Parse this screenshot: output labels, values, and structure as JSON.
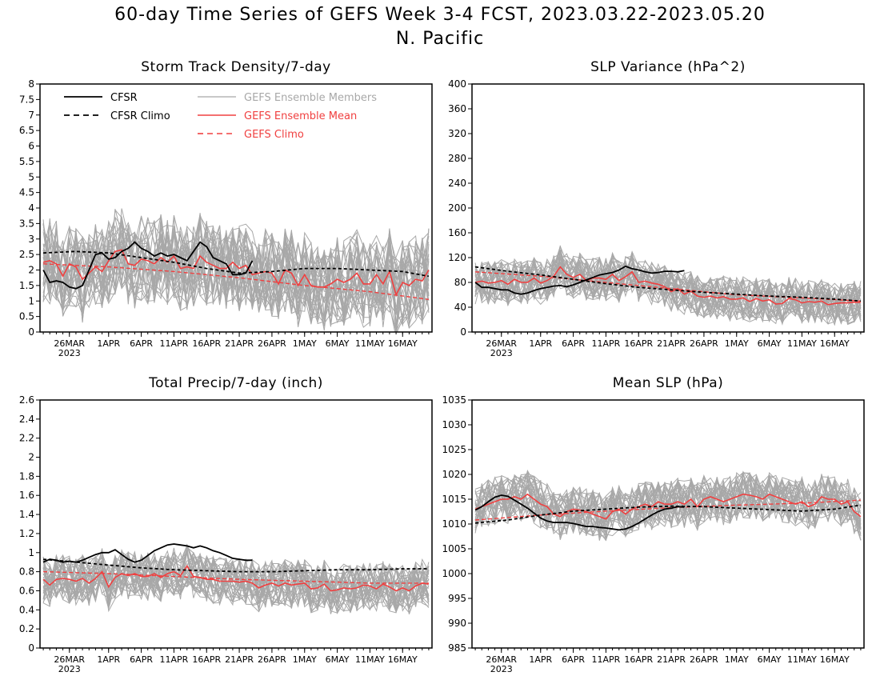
{
  "page": {
    "title_line1": "60-day Time Series of GEFS Week 3-4 FCST, 2023.03.22-2023.05.20",
    "title_line2": "N. Pacific"
  },
  "colors": {
    "cfsr": "#000000",
    "members": "#a8a8a8",
    "gefs": "#f04040"
  },
  "legend": {
    "cfsr": "CFSR",
    "cfsr_climo": "CFSR Climo",
    "members": "GEFS Ensemble Members",
    "gefs_mean": "GEFS Ensemble Mean",
    "gefs_climo": "GEFS Climo"
  },
  "x_ticks": [
    "26MAR",
    "1APR",
    "6APR",
    "11APR",
    "16APR",
    "21APR",
    "26APR",
    "1MAY",
    "6MAY",
    "11MAY",
    "16MAY"
  ],
  "x_year_label": "2023",
  "chart_data": [
    {
      "type": "line",
      "title": "Storm Track Density/7-day",
      "ylim": [
        0,
        8
      ],
      "yticks": [
        "0",
        "0.5",
        "1",
        "1.5",
        "2",
        "2.5",
        "3",
        "3.5",
        "4",
        "4.5",
        "5",
        "5.5",
        "6",
        "6.5",
        "7",
        "7.5",
        "8"
      ],
      "members": {
        "n": 31,
        "spread": 1.0
      },
      "series": [
        {
          "name": "CFSR",
          "x": [
            0,
            1,
            2,
            3,
            4,
            5,
            6,
            7,
            8,
            9,
            10,
            11,
            12,
            13,
            14,
            15,
            16,
            17,
            18,
            19,
            20,
            21,
            22,
            23,
            24,
            25,
            26,
            27,
            28,
            29,
            30,
            31,
            32
          ],
          "values": [
            2.0,
            1.6,
            1.65,
            1.6,
            1.45,
            1.4,
            1.5,
            2.0,
            2.5,
            2.55,
            2.35,
            2.4,
            2.6,
            2.7,
            2.9,
            2.7,
            2.6,
            2.45,
            2.55,
            2.45,
            2.5,
            2.4,
            2.3,
            2.6,
            2.9,
            2.75,
            2.4,
            2.3,
            2.2,
            1.85,
            1.85,
            1.9,
            2.3
          ]
        },
        {
          "name": "CFSR Climo",
          "x": [
            0,
            5,
            10,
            15,
            20,
            25,
            30,
            35,
            40,
            45,
            50,
            55,
            59
          ],
          "values": [
            2.55,
            2.6,
            2.55,
            2.4,
            2.25,
            2.05,
            1.9,
            1.95,
            2.05,
            2.05,
            2.0,
            1.95,
            1.8
          ]
        },
        {
          "name": "GEFS Ensemble Mean",
          "x": [
            0,
            1,
            2,
            3,
            4,
            5,
            6,
            7,
            8,
            9,
            10,
            11,
            12,
            13,
            14,
            15,
            16,
            17,
            18,
            19,
            20,
            21,
            22,
            23,
            24,
            25,
            26,
            27,
            28,
            29,
            30,
            31,
            32,
            33,
            34,
            35,
            36,
            37,
            38,
            39,
            40,
            41,
            42,
            43,
            44,
            45,
            46,
            47,
            48,
            49,
            50,
            51,
            52,
            53,
            54,
            55,
            56,
            57,
            58,
            59
          ],
          "values": [
            2.25,
            2.3,
            2.2,
            1.8,
            2.2,
            2.1,
            1.7,
            1.9,
            2.1,
            1.95,
            2.3,
            2.6,
            2.65,
            2.2,
            2.15,
            2.35,
            2.3,
            2.2,
            2.4,
            2.25,
            2.45,
            2.05,
            2.1,
            2.05,
            2.45,
            2.25,
            2.15,
            2.05,
            2.05,
            2.25,
            2.05,
            2.15,
            1.85,
            1.9,
            1.95,
            1.9,
            1.55,
            2.0,
            1.9,
            1.5,
            1.85,
            1.5,
            1.45,
            1.45,
            1.55,
            1.7,
            1.6,
            1.7,
            1.9,
            1.55,
            1.55,
            1.85,
            1.55,
            1.95,
            1.2,
            1.6,
            1.5,
            1.7,
            1.65,
            2.0
          ]
        },
        {
          "name": "GEFS Climo",
          "x": [
            0,
            10,
            20,
            30,
            40,
            50,
            59
          ],
          "values": [
            2.2,
            2.1,
            1.95,
            1.75,
            1.5,
            1.3,
            1.05
          ]
        }
      ]
    },
    {
      "type": "line",
      "title": "SLP Variance (hPa^2)",
      "ylim": [
        0,
        400
      ],
      "yticks": [
        "0",
        "40",
        "80",
        "120",
        "160",
        "200",
        "240",
        "280",
        "320",
        "360",
        "400"
      ],
      "members": {
        "n": 31,
        "spread": 25
      },
      "series": [
        {
          "name": "CFSR",
          "x": [
            0,
            1,
            2,
            3,
            4,
            5,
            6,
            7,
            8,
            9,
            10,
            11,
            12,
            13,
            14,
            15,
            16,
            17,
            18,
            19,
            20,
            21,
            22,
            23,
            24,
            25,
            26,
            27,
            28,
            29,
            30,
            31,
            32
          ],
          "values": [
            80,
            72,
            72,
            70,
            68,
            68,
            63,
            61,
            63,
            67,
            70,
            72,
            74,
            75,
            73,
            76,
            80,
            84,
            88,
            92,
            94,
            96,
            100,
            106,
            102,
            100,
            97,
            95,
            96,
            98,
            98,
            97,
            99
          ]
        },
        {
          "name": "CFSR Climo",
          "x": [
            0,
            5,
            10,
            15,
            20,
            25,
            30,
            35,
            40,
            45,
            50,
            55,
            59
          ],
          "values": [
            105,
            98,
            92,
            85,
            78,
            72,
            68,
            64,
            61,
            58,
            56,
            53,
            50
          ]
        },
        {
          "name": "GEFS Ensemble Mean",
          "x": [
            0,
            1,
            2,
            3,
            4,
            5,
            6,
            7,
            8,
            9,
            10,
            11,
            12,
            13,
            14,
            15,
            16,
            17,
            18,
            19,
            20,
            21,
            22,
            23,
            24,
            25,
            26,
            27,
            28,
            29,
            30,
            31,
            32,
            33,
            34,
            35,
            36,
            37,
            38,
            39,
            40,
            41,
            42,
            43,
            44,
            45,
            46,
            47,
            48,
            49,
            50,
            51,
            52,
            53,
            54,
            55,
            56,
            57,
            58,
            59
          ],
          "values": [
            80,
            82,
            79,
            80,
            83,
            77,
            85,
            80,
            80,
            87,
            79,
            83,
            90,
            105,
            93,
            88,
            93,
            83,
            87,
            87,
            85,
            93,
            83,
            89,
            97,
            80,
            82,
            79,
            77,
            73,
            65,
            70,
            61,
            66,
            58,
            56,
            58,
            55,
            57,
            53,
            53,
            55,
            49,
            54,
            50,
            52,
            45,
            46,
            54,
            52,
            47,
            49,
            48,
            50,
            44,
            46,
            47,
            47,
            48,
            48
          ]
        },
        {
          "name": "GEFS Climo",
          "x": [
            0,
            10,
            20,
            30,
            40,
            50,
            59
          ],
          "values": [
            97,
            90,
            80,
            70,
            60,
            55,
            50
          ]
        }
      ]
    },
    {
      "type": "line",
      "title": "Total Precip/7-day (inch)",
      "ylim": [
        0,
        2.6
      ],
      "yticks": [
        "0",
        "0.2",
        "0.4",
        "0.6",
        "0.8",
        "1",
        "1.2",
        "1.4",
        "1.6",
        "1.8",
        "2",
        "2.2",
        "2.4",
        "2.6"
      ],
      "members": {
        "n": 31,
        "spread": 0.18
      },
      "series": [
        {
          "name": "CFSR",
          "x": [
            0,
            1,
            2,
            3,
            4,
            5,
            6,
            7,
            8,
            9,
            10,
            11,
            12,
            13,
            14,
            15,
            16,
            17,
            18,
            19,
            20,
            21,
            22,
            23,
            24,
            25,
            26,
            27,
            28,
            29,
            30,
            31,
            32
          ],
          "values": [
            0.9,
            0.93,
            0.92,
            0.9,
            0.91,
            0.9,
            0.92,
            0.95,
            0.98,
            1.0,
            1.0,
            1.03,
            0.98,
            0.93,
            0.9,
            0.92,
            0.97,
            1.02,
            1.05,
            1.08,
            1.09,
            1.08,
            1.07,
            1.05,
            1.07,
            1.05,
            1.02,
            1.0,
            0.97,
            0.94,
            0.93,
            0.92,
            0.92
          ]
        },
        {
          "name": "CFSR Climo",
          "x": [
            0,
            5,
            10,
            15,
            20,
            25,
            30,
            35,
            40,
            45,
            50,
            55,
            59
          ],
          "values": [
            0.93,
            0.9,
            0.87,
            0.84,
            0.82,
            0.81,
            0.8,
            0.8,
            0.81,
            0.82,
            0.82,
            0.83,
            0.83
          ]
        },
        {
          "name": "GEFS Ensemble Mean",
          "x": [
            0,
            1,
            2,
            3,
            4,
            5,
            6,
            7,
            8,
            9,
            10,
            11,
            12,
            13,
            14,
            15,
            16,
            17,
            18,
            19,
            20,
            21,
            22,
            23,
            24,
            25,
            26,
            27,
            28,
            29,
            30,
            31,
            32,
            33,
            34,
            35,
            36,
            37,
            38,
            39,
            40,
            41,
            42,
            43,
            44,
            45,
            46,
            47,
            48,
            49,
            50,
            51,
            52,
            53,
            54,
            55,
            56,
            57,
            58,
            59
          ],
          "values": [
            0.72,
            0.66,
            0.72,
            0.73,
            0.72,
            0.7,
            0.73,
            0.68,
            0.73,
            0.8,
            0.64,
            0.74,
            0.78,
            0.76,
            0.78,
            0.75,
            0.75,
            0.78,
            0.74,
            0.78,
            0.8,
            0.76,
            0.86,
            0.75,
            0.74,
            0.72,
            0.72,
            0.7,
            0.7,
            0.7,
            0.69,
            0.7,
            0.68,
            0.63,
            0.66,
            0.68,
            0.65,
            0.68,
            0.66,
            0.67,
            0.68,
            0.62,
            0.63,
            0.67,
            0.6,
            0.61,
            0.63,
            0.62,
            0.63,
            0.66,
            0.65,
            0.62,
            0.67,
            0.64,
            0.6,
            0.63,
            0.6,
            0.65,
            0.68,
            0.67
          ]
        },
        {
          "name": "GEFS Climo",
          "x": [
            0,
            10,
            20,
            30,
            40,
            50,
            59
          ],
          "values": [
            0.8,
            0.78,
            0.75,
            0.72,
            0.7,
            0.68,
            0.68
          ]
        }
      ]
    },
    {
      "type": "line",
      "title": "Mean SLP (hPa)",
      "ylim": [
        985,
        1035
      ],
      "yticks": [
        "985",
        "990",
        "995",
        "1000",
        "1005",
        "1010",
        "1015",
        "1020",
        "1025",
        "1030",
        "1035"
      ],
      "members": {
        "n": 31,
        "spread": 3.5
      },
      "series": [
        {
          "name": "CFSR",
          "x": [
            0,
            1,
            2,
            3,
            4,
            5,
            6,
            7,
            8,
            9,
            10,
            11,
            12,
            13,
            14,
            15,
            16,
            17,
            18,
            19,
            20,
            21,
            22,
            23,
            24,
            25,
            26,
            27,
            28,
            29,
            30,
            31,
            32
          ],
          "values": [
            1012.8,
            1013.5,
            1014.5,
            1015.4,
            1015.8,
            1015.6,
            1014.8,
            1014.0,
            1013.2,
            1012.2,
            1011.2,
            1010.6,
            1010.3,
            1010.3,
            1010.3,
            1010.1,
            1009.8,
            1009.5,
            1009.5,
            1009.3,
            1009.2,
            1009.0,
            1008.8,
            1009.0,
            1009.5,
            1010.2,
            1011.0,
            1011.8,
            1012.5,
            1013.0,
            1013.2,
            1013.5,
            1013.4
          ]
        },
        {
          "name": "CFSR Climo",
          "x": [
            0,
            5,
            10,
            15,
            20,
            25,
            30,
            35,
            40,
            45,
            50,
            55,
            59
          ],
          "values": [
            1010.2,
            1010.8,
            1011.8,
            1012.6,
            1013.0,
            1013.4,
            1013.6,
            1013.5,
            1013.2,
            1012.9,
            1012.6,
            1013.0,
            1013.8
          ]
        },
        {
          "name": "GEFS Ensemble Mean",
          "x": [
            0,
            1,
            2,
            3,
            4,
            5,
            6,
            7,
            8,
            9,
            10,
            11,
            12,
            13,
            14,
            15,
            16,
            17,
            18,
            19,
            20,
            21,
            22,
            23,
            24,
            25,
            26,
            27,
            28,
            29,
            30,
            31,
            32,
            33,
            34,
            35,
            36,
            37,
            38,
            39,
            40,
            41,
            42,
            43,
            44,
            45,
            46,
            47,
            48,
            49,
            50,
            51,
            52,
            53,
            54,
            55,
            56,
            57,
            58,
            59
          ],
          "values": [
            1013,
            1013.5,
            1014,
            1014.5,
            1015,
            1015,
            1015.5,
            1015,
            1016,
            1015,
            1014,
            1013.5,
            1012,
            1011.5,
            1012.5,
            1013,
            1012.8,
            1012.5,
            1012,
            1011.5,
            1011,
            1012.5,
            1013,
            1012,
            1013,
            1013.5,
            1014,
            1013.5,
            1014.5,
            1014,
            1014,
            1014.5,
            1014,
            1015,
            1013.5,
            1015,
            1015.5,
            1015,
            1014.5,
            1015,
            1015.5,
            1016,
            1015.8,
            1015.5,
            1015,
            1016,
            1015.5,
            1015,
            1014.5,
            1014,
            1014.5,
            1013.5,
            1014,
            1015.5,
            1015,
            1015,
            1014,
            1014.5,
            1012.5,
            1011.5
          ]
        },
        {
          "name": "GEFS Climo",
          "x": [
            0,
            10,
            20,
            30,
            40,
            50,
            59
          ],
          "values": [
            1010.8,
            1011.8,
            1012.6,
            1013.3,
            1013.8,
            1014.2,
            1014.8
          ]
        }
      ]
    }
  ]
}
